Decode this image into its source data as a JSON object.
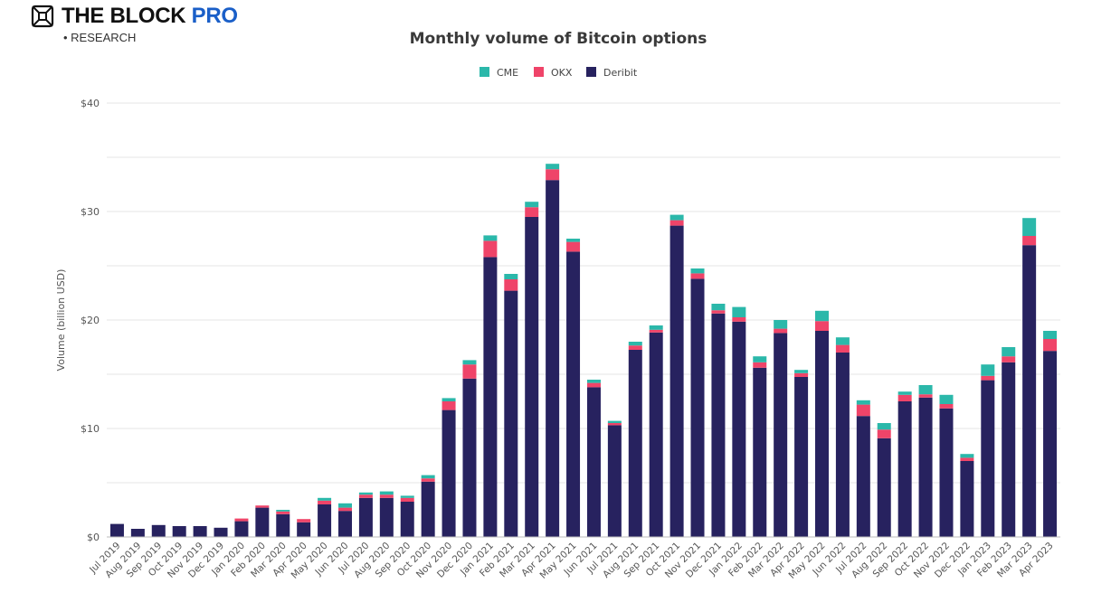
{
  "branding": {
    "name_main": "THE BLOCK",
    "name_accent": "PRO",
    "subtitle": "• RESEARCH",
    "logo_icon": "cube-icon"
  },
  "colors": {
    "CME": "#2bb8aa",
    "OKX": "#ef4469",
    "Deribit": "#27225f",
    "grid": "#e6e6e6",
    "axis": "#bbbbbb"
  },
  "chart_data": {
    "type": "bar",
    "stacked": true,
    "title": "Monthly volume of Bitcoin options",
    "xlabel": "",
    "ylabel": "Volume (billion USD)",
    "ylim": [
      0,
      40
    ],
    "yticks": [
      0,
      10,
      20,
      30,
      40
    ],
    "ytick_labels": [
      "$0",
      "$10",
      "$20",
      "$30",
      "$40"
    ],
    "grid": true,
    "legend_position": "top-center",
    "legend": [
      "CME",
      "OKX",
      "Deribit"
    ],
    "categories": [
      "Jul 2019",
      "Aug 2019",
      "Sep 2019",
      "Oct 2019",
      "Nov 2019",
      "Dec 2019",
      "Jan 2020",
      "Feb 2020",
      "Mar 2020",
      "Apr 2020",
      "May 2020",
      "Jun 2020",
      "Jul 2020",
      "Aug 2020",
      "Sep 2020",
      "Oct 2020",
      "Nov 2020",
      "Dec 2020",
      "Jan 2021",
      "Feb 2021",
      "Mar 2021",
      "Apr 2021",
      "May 2021",
      "Jun 2021",
      "Jul 2021",
      "Aug 2021",
      "Sep 2021",
      "Oct 2021",
      "Nov 2021",
      "Dec 2021",
      "Jan 2022",
      "Feb 2022",
      "Mar 2022",
      "Apr 2022",
      "May 2022",
      "Jun 2022",
      "Jul 2022",
      "Aug 2022",
      "Sep 2022",
      "Oct 2022",
      "Nov 2022",
      "Dec 2022",
      "Jan 2023",
      "Feb 2023",
      "Mar 2023",
      "Apr 2023"
    ],
    "series": [
      {
        "name": "Deribit",
        "values": [
          1.2,
          0.75,
          1.1,
          1.0,
          1.0,
          0.85,
          1.45,
          2.7,
          2.1,
          1.35,
          3.0,
          2.4,
          3.6,
          3.6,
          3.25,
          5.1,
          11.7,
          14.6,
          25.8,
          22.7,
          29.5,
          32.9,
          26.3,
          13.8,
          10.3,
          17.25,
          18.85,
          28.7,
          23.8,
          20.6,
          19.85,
          15.6,
          18.8,
          14.75,
          19.0,
          17.0,
          11.15,
          9.1,
          12.5,
          12.85,
          11.85,
          7.0,
          14.45,
          16.1,
          26.9,
          17.15
        ]
      },
      {
        "name": "OKX",
        "values": [
          0,
          0,
          0,
          0,
          0,
          0,
          0.25,
          0.2,
          0.25,
          0.3,
          0.35,
          0.3,
          0.3,
          0.3,
          0.35,
          0.3,
          0.8,
          1.3,
          1.5,
          1.05,
          0.9,
          1.0,
          0.9,
          0.4,
          0.2,
          0.4,
          0.25,
          0.5,
          0.5,
          0.3,
          0.4,
          0.5,
          0.4,
          0.35,
          0.9,
          0.7,
          1.05,
          0.8,
          0.6,
          0.3,
          0.4,
          0.3,
          0.4,
          0.55,
          0.85,
          1.1
        ]
      },
      {
        "name": "CME",
        "values": [
          0,
          0,
          0,
          0,
          0,
          0,
          0,
          0,
          0.15,
          0,
          0.25,
          0.4,
          0.2,
          0.3,
          0.2,
          0.3,
          0.3,
          0.4,
          0.5,
          0.5,
          0.5,
          0.5,
          0.3,
          0.3,
          0.2,
          0.35,
          0.4,
          0.5,
          0.45,
          0.6,
          0.95,
          0.55,
          0.8,
          0.3,
          0.95,
          0.7,
          0.4,
          0.6,
          0.3,
          0.85,
          0.85,
          0.35,
          1.05,
          0.85,
          1.65,
          0.75
        ]
      }
    ]
  }
}
